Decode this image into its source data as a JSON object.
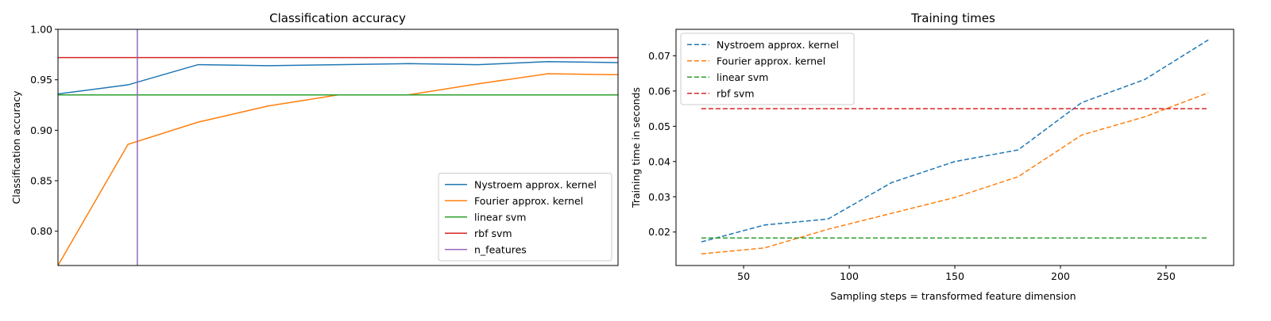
{
  "chart_data": [
    {
      "type": "line",
      "title": "Classification accuracy",
      "xlabel": "",
      "ylabel": "Classification accuracy",
      "xlim": [
        30,
        270
      ],
      "ylim": [
        0.766,
        1.0
      ],
      "x_ticks_visible": false,
      "y_ticks": [
        0.8,
        0.85,
        0.9,
        0.95,
        1.0
      ],
      "y_tick_labels": [
        "0.80",
        "0.85",
        "0.90",
        "0.95",
        "1.00"
      ],
      "grid": false,
      "legend_position": "lower-right",
      "x": [
        30,
        60,
        90,
        120,
        150,
        180,
        210,
        240,
        270
      ],
      "series": [
        {
          "name": "Nystroem approx. kernel",
          "color": "#1f77b4",
          "style": "solid",
          "values": [
            0.936,
            0.945,
            0.965,
            0.964,
            0.965,
            0.966,
            0.965,
            0.968,
            0.967
          ]
        },
        {
          "name": "Fourier approx. kernel",
          "color": "#ff7f0e",
          "style": "solid",
          "values": [
            0.766,
            0.886,
            0.908,
            0.924,
            0.935,
            0.935,
            0.946,
            0.956,
            0.955
          ]
        },
        {
          "name": "linear svm",
          "color": "#2ca02c",
          "style": "solid",
          "type": "hline",
          "value": 0.935
        },
        {
          "name": "rbf svm",
          "color": "#d62728",
          "style": "solid",
          "type": "hline",
          "value": 0.972
        },
        {
          "name": "n_features",
          "color": "#9467bd",
          "style": "solid",
          "type": "vline",
          "value": 64
        }
      ]
    },
    {
      "type": "line",
      "title": "Training times",
      "xlabel": "Sampling steps = transformed feature dimension",
      "ylabel": "Training time in seconds",
      "xlim": [
        18,
        282
      ],
      "ylim": [
        0.0105,
        0.0775
      ],
      "x_ticks": [
        50,
        100,
        150,
        200,
        250
      ],
      "x_tick_labels": [
        "50",
        "100",
        "150",
        "200",
        "250"
      ],
      "y_ticks": [
        0.02,
        0.03,
        0.04,
        0.05,
        0.06,
        0.07
      ],
      "y_tick_labels": [
        "0.02",
        "0.03",
        "0.04",
        "0.05",
        "0.06",
        "0.07"
      ],
      "grid": false,
      "legend_position": "top-left",
      "x": [
        30,
        60,
        90,
        120,
        150,
        180,
        210,
        240,
        270
      ],
      "series": [
        {
          "name": "Nystroem approx. kernel",
          "color": "#1f77b4",
          "style": "dashed",
          "values": [
            0.0172,
            0.022,
            0.0237,
            0.034,
            0.04,
            0.0433,
            0.0567,
            0.0633,
            0.0745
          ]
        },
        {
          "name": "Fourier approx. kernel",
          "color": "#ff7f0e",
          "style": "dashed",
          "values": [
            0.0138,
            0.0155,
            0.0208,
            0.0253,
            0.0298,
            0.0357,
            0.0475,
            0.0527,
            0.0595
          ]
        },
        {
          "name": "linear svm",
          "color": "#2ca02c",
          "style": "dashed",
          "values": [
            0.0183,
            0.0183,
            0.0183,
            0.0183,
            0.0183,
            0.0183,
            0.0183,
            0.0183,
            0.0183
          ]
        },
        {
          "name": "rbf svm",
          "color": "#d62728",
          "style": "dashed",
          "values": [
            0.055,
            0.055,
            0.055,
            0.055,
            0.055,
            0.055,
            0.055,
            0.055,
            0.055
          ]
        }
      ]
    }
  ]
}
